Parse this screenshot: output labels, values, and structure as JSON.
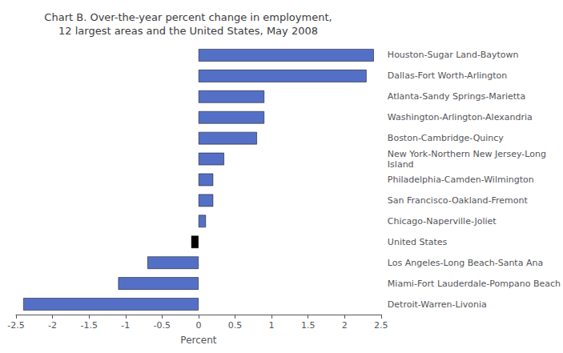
{
  "chart_data": {
    "type": "bar",
    "orientation": "horizontal",
    "title": "Chart B. Over-the-year percent change in employment,\n12 largest areas and the United States, May 2008",
    "categories": [
      "Houston-Sugar Land-Baytown",
      "Dallas-Fort Worth-Arlington",
      "Atlanta-Sandy Springs-Marietta",
      "Washington-Arlington-Alexandria",
      "Boston-Cambridge-Quincy",
      "New York-Northern New Jersey-Long\nIsland",
      "Philadelphia-Camden-Wilmington",
      "San Francisco-Oakland-Fremont",
      "Chicago-Naperville-Joliet",
      "United States",
      "Los Angeles-Long Beach-Santa Ana",
      "Miami-Fort Lauderdale-Pompano Beach",
      "Detroit-Warren-Livonia"
    ],
    "values": [
      2.4,
      2.3,
      0.9,
      0.9,
      0.8,
      0.35,
      0.2,
      0.2,
      0.1,
      -0.1,
      -0.7,
      -1.1,
      -2.4
    ],
    "colors": [
      "#5470c6",
      "#5470c6",
      "#5470c6",
      "#5470c6",
      "#5470c6",
      "#5470c6",
      "#5470c6",
      "#5470c6",
      "#5470c6",
      "#000000",
      "#5470c6",
      "#5470c6",
      "#5470c6"
    ],
    "xlabel": "Percent",
    "xlim": [
      -2.5,
      2.5
    ],
    "xticks": [
      -2.5,
      -2.0,
      -1.5,
      -1.0,
      -0.5,
      0.0,
      0.5,
      1.0,
      1.5,
      2.0,
      2.5
    ],
    "grid": false
  }
}
